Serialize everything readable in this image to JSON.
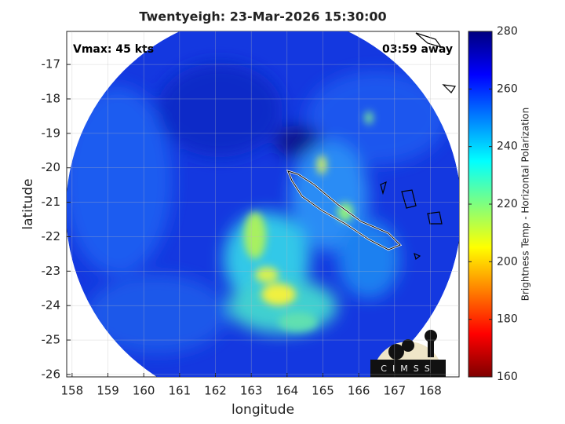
{
  "chart_data": {
    "type": "image",
    "title": "Twentyeigh: 23-Mar-2026 15:30:00",
    "annotations": [
      "Vmax: 45 kts",
      "03:59 away"
    ],
    "xlabel": "longitude",
    "ylabel": "latitude",
    "xlim": [
      157.85,
      168.8
    ],
    "ylim": [
      -26.07,
      -16.04
    ],
    "xticks": [
      158,
      159,
      160,
      161,
      162,
      163,
      164,
      165,
      166,
      167,
      168
    ],
    "yticks": [
      -17,
      -18,
      -19,
      -20,
      -21,
      -22,
      -23,
      -24,
      -25,
      -26
    ],
    "grid": true,
    "colorbar": {
      "label": "Brightness Temp - Horizontal Polarization",
      "lim": [
        160,
        280
      ],
      "ticks": [
        160,
        180,
        200,
        220,
        240,
        260,
        280
      ]
    },
    "logo_text": "CIMSS"
  }
}
